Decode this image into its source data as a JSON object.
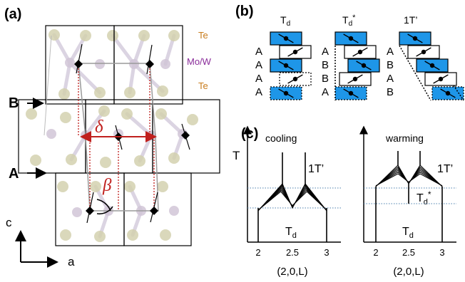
{
  "panel_a": {
    "label": "(a)",
    "species": {
      "te_top": "Te",
      "mo_w": "Mo/W",
      "te_bottom": "Te"
    },
    "layer_a": "A",
    "layer_b": "B",
    "delta": "δ",
    "beta": "β",
    "axis_c": "c",
    "axis_a": "a",
    "colors": {
      "te": "#cfcca7",
      "mo_w": "#cdbfd2",
      "accent": "#c0201e",
      "te_text": "#c87c1c",
      "mo_text": "#8a2c9a"
    }
  },
  "panel_b": {
    "label": "(b)",
    "columns": [
      {
        "title": "T",
        "title_sub": "d",
        "sequence": [
          "A",
          "A",
          "A",
          "A"
        ]
      },
      {
        "title": "T",
        "title_sub": "d",
        "title_sup": "*",
        "sequence": [
          "A",
          "B",
          "B",
          "A"
        ]
      },
      {
        "title": "1T’",
        "sequence": [
          "A",
          "B",
          "A",
          "B"
        ]
      }
    ],
    "colors": {
      "fill": "#1e96e8"
    }
  },
  "panel_c": {
    "label": "(c)",
    "y_axis": "T",
    "plots": [
      {
        "title": "cooling",
        "high_phase": "1T’",
        "low_phase": "T",
        "low_phase_sub": "d",
        "ticks": [
          "2",
          "2.5",
          "3"
        ],
        "xlabel": "(2,0,L)"
      },
      {
        "title": "warming",
        "high_phase": "1T’",
        "mid_phase": "T",
        "mid_phase_sub": "d",
        "mid_phase_sup": "*",
        "low_phase": "T",
        "low_phase_sub": "d",
        "ticks": [
          "2",
          "2.5",
          "3"
        ],
        "xlabel": "(2,0,L)"
      }
    ],
    "colors": {
      "dotted": "#4b7fae"
    }
  }
}
